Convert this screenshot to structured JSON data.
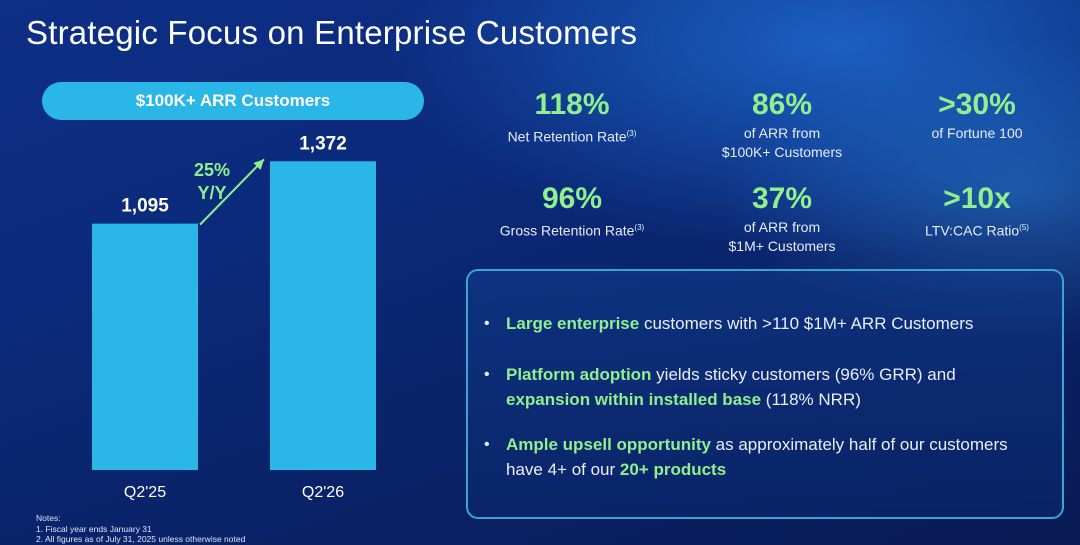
{
  "title": "Strategic Focus on Enterprise Customers",
  "chart_data": {
    "type": "bar",
    "title": "$100K+ ARR Customers",
    "categories": [
      "Q2'25",
      "Q2'26"
    ],
    "values": [
      1095,
      1372
    ],
    "value_labels": [
      "1,095",
      "1,372"
    ],
    "ylim": [
      0,
      1600
    ],
    "annotation": {
      "text": [
        "25%",
        "Y/Y"
      ],
      "from": "Q2'25",
      "to": "Q2'26"
    },
    "bar_color": "#2ab6e6",
    "grid": false
  },
  "kpis": [
    {
      "value": "118%",
      "label_lines": [
        "Net Retention Rate"
      ],
      "sup": "(3)"
    },
    {
      "value": "86%",
      "label_lines": [
        "of ARR from",
        "$100K+ Customers"
      ],
      "sup": ""
    },
    {
      "value": ">30%",
      "label_lines": [
        "of Fortune 100"
      ],
      "sup": ""
    },
    {
      "value": "96%",
      "label_lines": [
        "Gross Retention Rate"
      ],
      "sup": "(3)"
    },
    {
      "value": "37%",
      "label_lines": [
        "of ARR from",
        "$1M+ Customers"
      ],
      "sup": ""
    },
    {
      "value": ">10x",
      "label_lines": [
        "LTV:CAC Ratio"
      ],
      "sup": "(5)"
    }
  ],
  "bullets": {
    "b1": {
      "hl1": "Large enterprise",
      "t1": " customers with >110 $1M+ ARR Customers"
    },
    "b2": {
      "hl1": "Platform adoption",
      "t1": " yields sticky customers (96% GRR) and ",
      "hl2": "expansion within installed base",
      "t2": " (118% NRR)"
    },
    "b3": {
      "hl1": "Ample upsell opportunity",
      "t1": " as approximately half of our customers have 4+ of our ",
      "hl2": "20+ products"
    }
  },
  "bullet_symbol": "•",
  "notes": {
    "heading": "Notes:",
    "items": [
      "1. Fiscal year ends January 31",
      "2. All figures as of July 31, 2025 unless otherwise noted"
    ]
  },
  "colors": {
    "accent_green": "#8ff08d",
    "bar_blue": "#2ab6e6",
    "panel_border": "#3aa4d6"
  }
}
